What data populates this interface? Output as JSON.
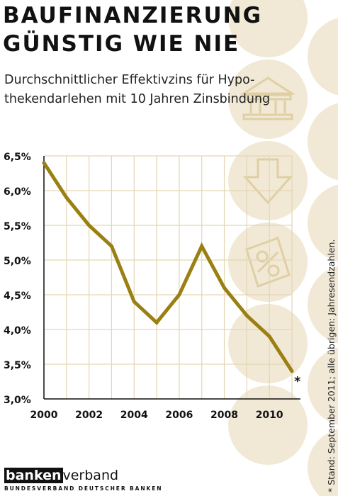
{
  "title_line1": "BAUFINANZIERUNG",
  "title_line2": "GÜNSTIG WIE NIE",
  "subtitle_line1": "Durchschnittlicher Effektivzins für Hypo-",
  "subtitle_line2": "thekendarlehen mit 10 Jahren Zinsbindung",
  "footnote": "* Stand: September 2011; alle übrigen: Jahresendzahlen.",
  "asterisk": "*",
  "logo": {
    "box_text": "banken",
    "rest_text": "verband",
    "subtitle": "BUNDESVERBAND DEUTSCHER BANKEN"
  },
  "colors": {
    "line": "#9a7f13",
    "grid": "#e3d6b2",
    "circle": "#f1e9d6",
    "circle_icon": "#e2d2a8",
    "text": "#111111"
  },
  "icons": [
    "bank-building-icon",
    "arrow-down-icon",
    "percent-tag-icon"
  ],
  "chart_data": {
    "type": "line",
    "title": "BAUFINANZIERUNG GÜNSTIG WIE NIE",
    "subtitle": "Durchschnittlicher Effektivzins für Hypothekendarlehen mit 10 Jahren Zinsbindung",
    "xlabel": "",
    "ylabel": "",
    "x": [
      2000,
      2001,
      2002,
      2003,
      2004,
      2005,
      2006,
      2007,
      2008,
      2009,
      2010,
      2011
    ],
    "values": [
      6.4,
      5.9,
      5.5,
      5.2,
      4.4,
      4.1,
      4.5,
      5.2,
      4.6,
      4.2,
      3.9,
      3.4
    ],
    "ylim": [
      3.0,
      6.5
    ],
    "xlim": [
      2000,
      2011
    ],
    "yticks": [
      3.0,
      3.5,
      4.0,
      4.5,
      5.0,
      5.5,
      6.0,
      6.5
    ],
    "ytick_labels": [
      "3,0%",
      "3,5%",
      "4,0%",
      "4,5%",
      "5,0%",
      "5,5%",
      "6,0%",
      "6,5%"
    ],
    "xticks": [
      2000,
      2002,
      2004,
      2006,
      2008,
      2010
    ],
    "xtick_labels": [
      "2000",
      "2002",
      "2004",
      "2006",
      "2008",
      "2010"
    ],
    "grid": true,
    "legend": "none"
  }
}
